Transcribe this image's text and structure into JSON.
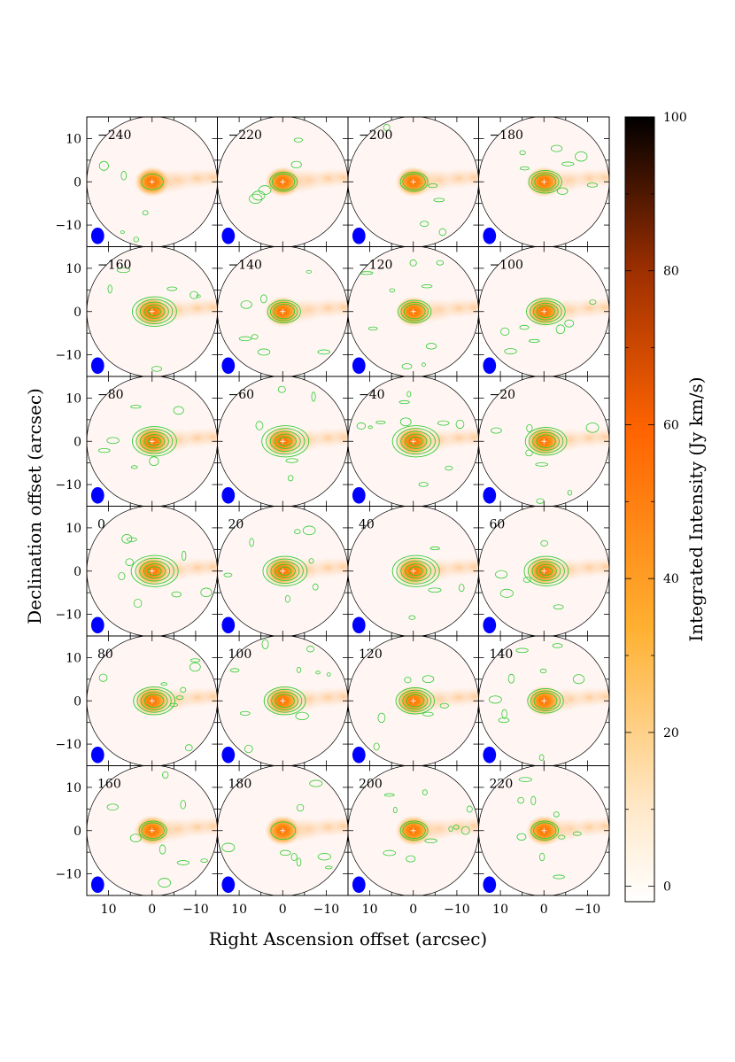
{
  "chart_data": {
    "type": "heatmap",
    "layout": {
      "rows": 6,
      "cols": 4
    },
    "panels": [
      {
        "label": "−240"
      },
      {
        "label": "−220"
      },
      {
        "label": "−200"
      },
      {
        "label": "−180"
      },
      {
        "label": "−160"
      },
      {
        "label": "−140"
      },
      {
        "label": "−120"
      },
      {
        "label": "−100"
      },
      {
        "label": "−80"
      },
      {
        "label": "−60"
      },
      {
        "label": "−40"
      },
      {
        "label": "−20"
      },
      {
        "label": "0"
      },
      {
        "label": "20"
      },
      {
        "label": "40"
      },
      {
        "label": "60"
      },
      {
        "label": "80"
      },
      {
        "label": "100"
      },
      {
        "label": "120"
      },
      {
        "label": "140"
      },
      {
        "label": "160"
      },
      {
        "label": "180"
      },
      {
        "label": "200"
      },
      {
        "label": "220"
      }
    ],
    "contour_strength": [
      0.1,
      0.3,
      0.3,
      0.5,
      0.9,
      0.5,
      0.5,
      0.7,
      0.9,
      1.0,
      1.0,
      0.8,
      1.0,
      0.9,
      1.0,
      0.9,
      0.8,
      0.8,
      0.7,
      0.6,
      0.3,
      0.2,
      0.3,
      0.3
    ],
    "xlabel": "Right Ascension offset (arcsec)",
    "ylabel": "Declination offset (arcsec)",
    "x_ticks": [
      10,
      0,
      -10
    ],
    "x_tick_labels": [
      "10",
      "0",
      "−10"
    ],
    "y_ticks": [
      10,
      0,
      -10
    ],
    "y_tick_labels": [
      "10",
      "0",
      "−10"
    ],
    "xlim": [
      15,
      -15
    ],
    "ylim": [
      -15,
      15
    ],
    "colorbar": {
      "label": "Integrated Intensity (Jy km/s)",
      "range": [
        -2,
        100
      ],
      "ticks": [
        0,
        20,
        40,
        60,
        80,
        100
      ],
      "tick_labels": [
        "0",
        "20",
        "40",
        "60",
        "80",
        "100"
      ]
    },
    "colors": {
      "contour": "#33cc33",
      "beam": "#0000ff",
      "cross": "#ffffff",
      "frame": "#000000"
    }
  }
}
